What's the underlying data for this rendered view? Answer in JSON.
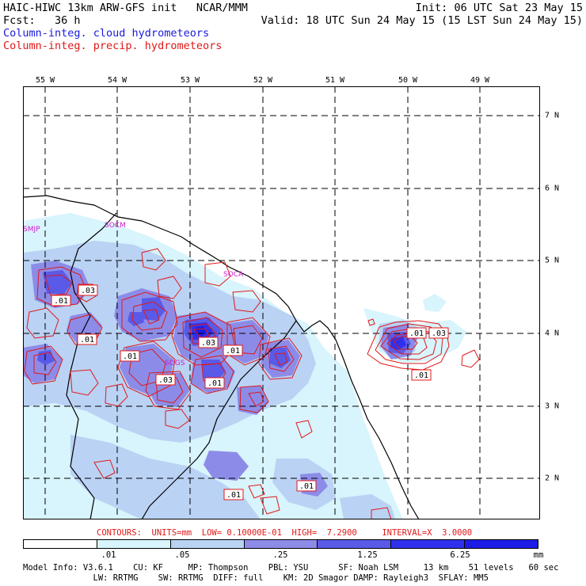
{
  "header": {
    "line1_left": "HAIC-HIWC 13km ARW-GFS init   NCAR/MMM",
    "line1_right": "Init: 06 UTC Sat 23 May 15",
    "line2_left": "Fcst:   36 h",
    "line2_right": "Valid: 18 UTC Sun 24 May 15 (15 LST Sun 24 May 15)",
    "line3": "Column-integ. cloud hydrometeors",
    "line4": "Column-integ. precip. hydrometeors"
  },
  "map": {
    "lon_labels": [
      "55 W",
      "54 W",
      "53 W",
      "52 W",
      "51 W",
      "50 W",
      "49 W"
    ],
    "lat_labels": [
      "7 N",
      "6 N",
      "5 N",
      "4 N",
      "3 N",
      "2 N"
    ],
    "stations": [
      "SMJP",
      "SOCM",
      "SOCA",
      "SOGS"
    ],
    "contour_labels": [
      ".03",
      ".01",
      ".01",
      ".03",
      ".01",
      ".01",
      ".03",
      ".01",
      ".01",
      ".03",
      ".01",
      ".01",
      ".01"
    ],
    "colors": {
      "shade1": "#d8f4fc",
      "shade2": "#bad2f4",
      "shade3": "#8c8ce8",
      "shade4": "#5a5ae8",
      "shade5": "#3030ec",
      "shade6": "#1c1ce6",
      "contour": "#e01818",
      "coast": "#000000",
      "station": "#d020d0"
    }
  },
  "footer": {
    "contours": "CONTOURS:  UNITS=mm  LOW= 0.10000E-01  HIGH=  7.2900     INTERVAL=X  3.0000",
    "colorbar_labels": [
      ".01",
      ".05",
      ".25",
      "1.25",
      "6.25"
    ],
    "units": "mm",
    "model_line1": "Model Info: V3.6.1    CU: KF     MP: Thompson    PBL: YSU      SF: Noah LSM     13 km    51 levels   60 sec",
    "model_line2": "              LW: RRTMG    SW: RRTMG  DIFF: full    KM: 2D Smagor DAMP: Rayleigh3  SFLAY: MM5"
  }
}
